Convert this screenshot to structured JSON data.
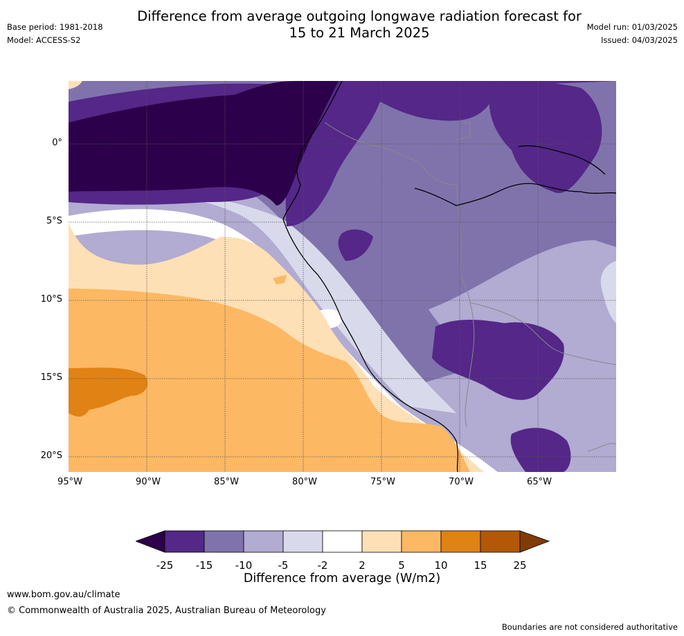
{
  "header": {
    "title_line1": "Difference from average outgoing longwave radiation forecast for",
    "title_line2": "15 to 21 March 2025",
    "base_period": "Base period: 1981-2018",
    "model": "Model: ACCESS-S2",
    "model_run": "Model run: 01/03/2025",
    "issued": "Issued: 04/03/2025"
  },
  "map": {
    "lat_labels": [
      "0°",
      "5°S",
      "10°S",
      "15°S",
      "20°S"
    ],
    "lon_labels": [
      "95°W",
      "90°W",
      "85°W",
      "80°W",
      "75°W",
      "70°W",
      "65°W"
    ],
    "colors": {
      "lt_-25": "#2d004b",
      "-25_-15": "#542788",
      "-15_-10": "#8073ac",
      "-10_-5": "#b2abd2",
      "-5_-2": "#d8daeb",
      "-2_2": "#ffffff",
      "2_5": "#fee0b6",
      "5_10": "#fdb863",
      "10_15": "#e08214",
      "15_25": "#b35806",
      "gt_25": "#7f3b08",
      "coast": "#000000",
      "border": "#888888",
      "grid": "#555555"
    }
  },
  "colorbar": {
    "labels": [
      "-25",
      "-15",
      "-10",
      "-5",
      "-2",
      "2",
      "5",
      "10",
      "15",
      "25"
    ],
    "title": "Difference from average (W/m2)"
  },
  "footer": {
    "website": "www.bom.gov.au/climate",
    "copyright": "© Commonwealth of Australia 2025, Australian Bureau of Meteorology",
    "disclaimer": "Boundaries are not considered authoritative"
  }
}
